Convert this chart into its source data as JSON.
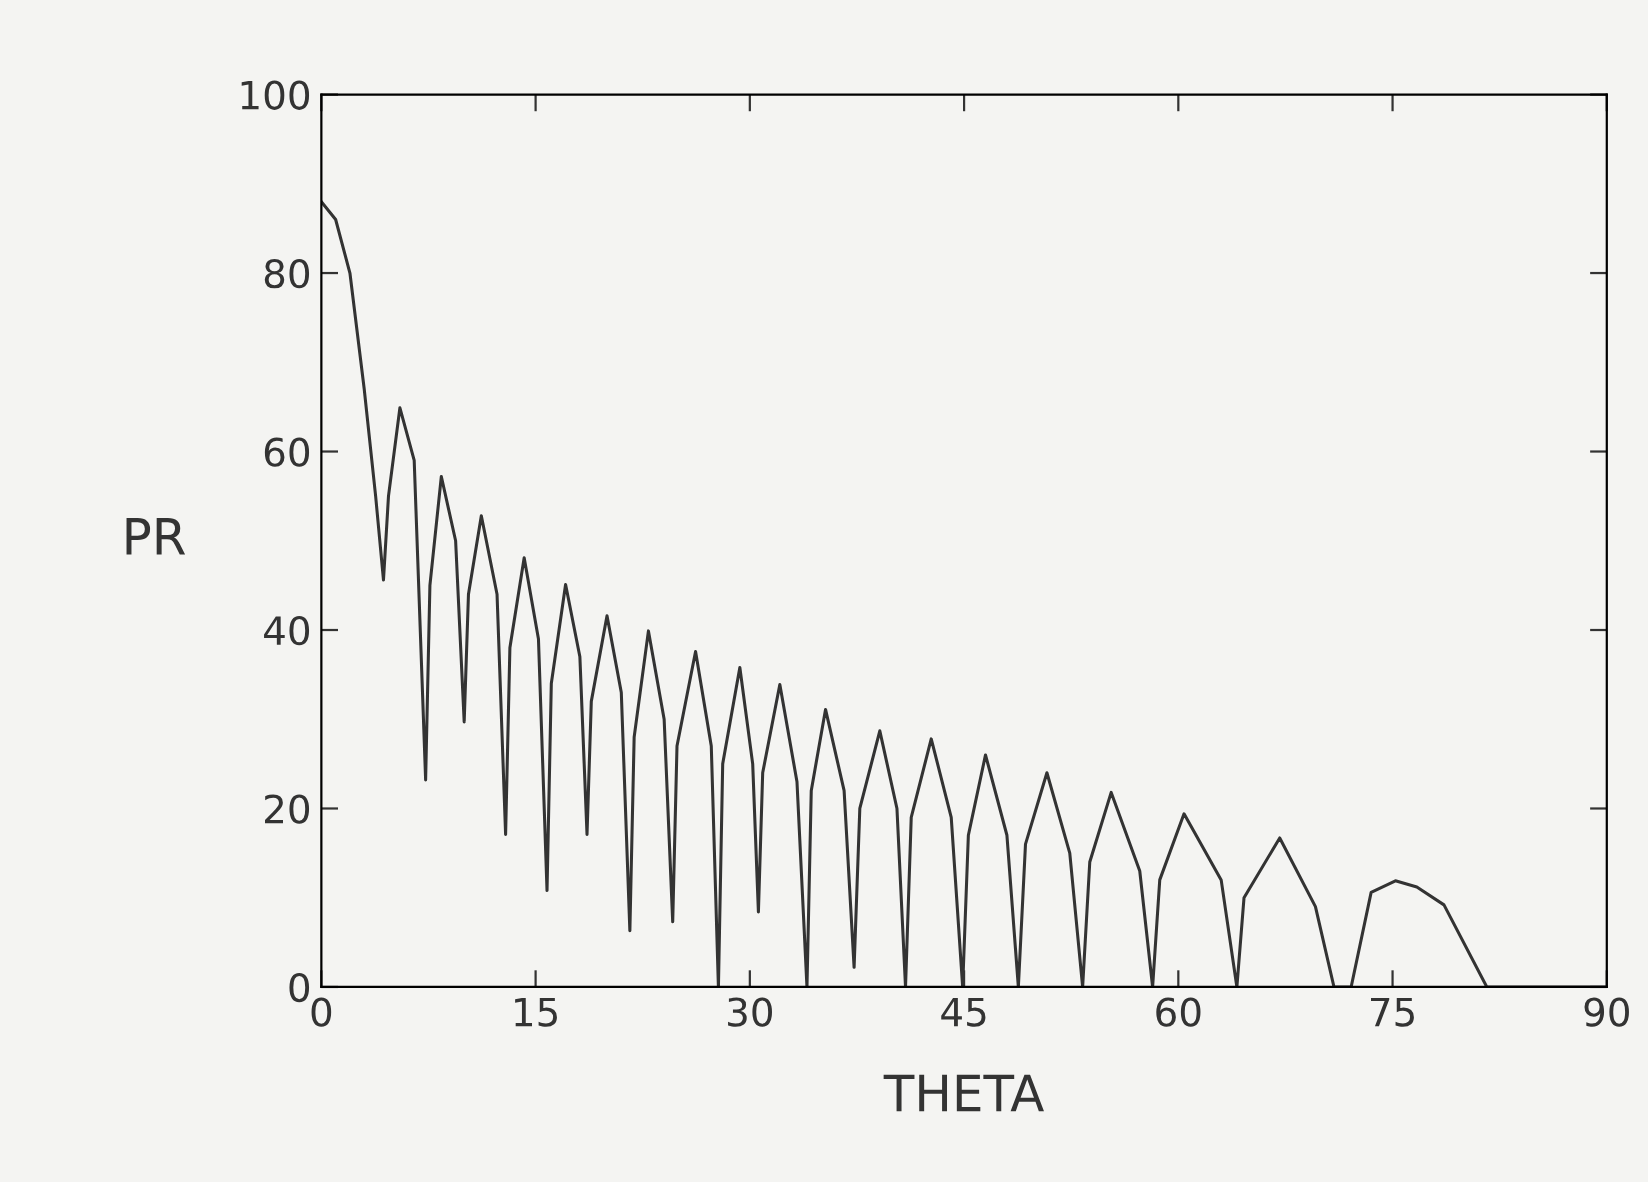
{
  "chart_data": {
    "type": "line",
    "xlabel": "THETA",
    "ylabel": "PR",
    "color": "#333333",
    "x": [
      0,
      1,
      2,
      3,
      3.8,
      4.35,
      4.7,
      5.5,
      6.5,
      7.3,
      7.6,
      8.4,
      9.4,
      10.0,
      10.3,
      11.2,
      12.3,
      12.9,
      13.2,
      14.2,
      15.2,
      15.8,
      16.1,
      17.1,
      18.1,
      18.6,
      18.9,
      20.0,
      21.0,
      21.6,
      21.9,
      22.9,
      24.0,
      24.6,
      24.9,
      26.2,
      27.3,
      27.8,
      28.1,
      29.3,
      30.2,
      30.6,
      30.9,
      32.1,
      33.3,
      34.0,
      34.3,
      35.3,
      36.6,
      37.3,
      37.7,
      39.1,
      40.3,
      40.9,
      41.3,
      42.7,
      44.1,
      44.9,
      45.3,
      46.5,
      48.0,
      48.8,
      49.3,
      50.8,
      52.4,
      53.3,
      53.8,
      55.3,
      57.3,
      58.2,
      58.7,
      60.4,
      63.0,
      64.1,
      64.6,
      67.1,
      69.6,
      70.9,
      72.1,
      73.5,
      75.2,
      76.7,
      78.6,
      81.6,
      90
    ],
    "values": [
      88,
      86,
      80,
      67,
      55,
      45.6,
      55,
      64.9,
      59,
      23.2,
      45,
      57.2,
      50,
      29.7,
      44,
      52.8,
      44,
      17.1,
      38,
      48.1,
      39,
      10.8,
      34,
      45.1,
      37,
      17.1,
      32,
      41.6,
      33,
      6.3,
      28,
      39.9,
      30,
      7.3,
      27,
      37.6,
      27,
      0,
      25,
      35.8,
      25,
      8.4,
      24,
      33.9,
      23,
      0,
      22,
      31.1,
      22,
      2.2,
      20,
      28.7,
      20,
      0,
      19,
      27.8,
      19,
      0,
      17,
      26.0,
      17,
      0,
      16,
      24.0,
      15,
      0,
      14,
      21.8,
      13,
      0,
      12,
      19.4,
      12,
      0,
      10,
      16.7,
      9,
      0,
      0,
      10.6,
      11.9,
      11.2,
      9.2,
      0,
      0
    ],
    "xlim": [
      0,
      90
    ],
    "xticks": [
      0,
      15,
      30,
      45,
      60,
      75,
      90
    ],
    "ylim": [
      0,
      100
    ],
    "yticks": [
      0,
      20,
      40,
      60,
      80,
      100
    ],
    "grid": false
  }
}
